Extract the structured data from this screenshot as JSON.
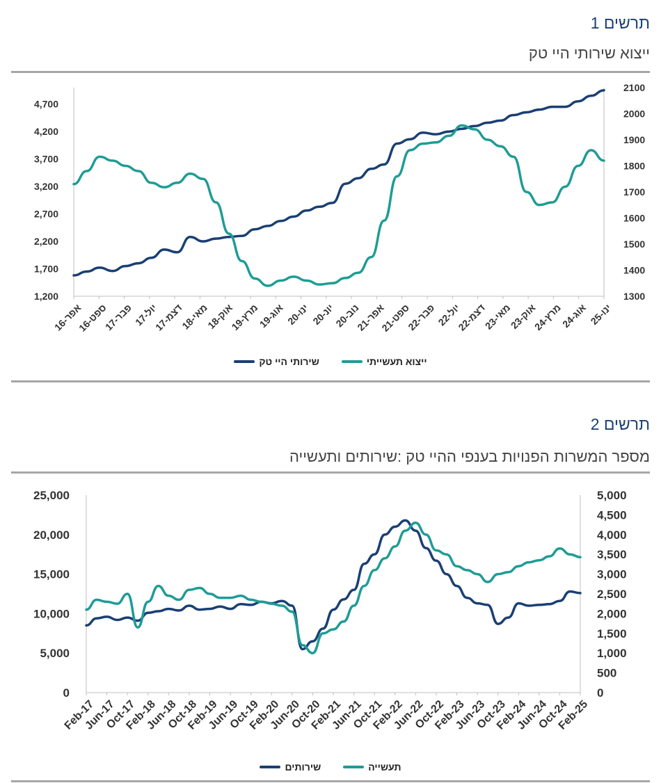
{
  "figure1": {
    "number": "תרשים 1",
    "title": "ייצוא שירותי היי טק",
    "legend": [
      "ייצוא תעשייתי",
      "שירותי היי טק"
    ],
    "colors": {
      "hitech_services": "#1a3f73",
      "industrial_exports": "#1e9c95"
    }
  },
  "figure2": {
    "number": "תרשים 2",
    "title": "מספר המשרות הפנויות בענפי ההיי טק :שירותים ותעשייה",
    "legend": [
      "תעשייה",
      "שירותים"
    ],
    "colors": {
      "services": "#1a3f73",
      "industry": "#1e9c95"
    }
  },
  "chart_data": [
    {
      "type": "line",
      "title": "ייצוא שירותי היי טק",
      "xlabel": "",
      "ylabel": "",
      "ylim": [
        1200,
        5000
      ],
      "y2lim": [
        1300,
        2100
      ],
      "y_ticks": [
        "4,700",
        "4,200",
        "3,700",
        "3,200",
        "2,700",
        "2,200",
        "1,700",
        "1,200"
      ],
      "y2_ticks": [
        "2100",
        "2000",
        "1900",
        "1800",
        "1700",
        "1600",
        "1500",
        "1400",
        "1300"
      ],
      "x_ticks": [
        "אפר-16",
        "ספט-16",
        "פבר-17",
        "יול-17",
        "דצמ-17",
        "מאי-18",
        "אוק-18",
        "מרץ-19",
        "אוג-19",
        "ינו-20",
        "יונ-20",
        "נוב-20",
        "אפר-21",
        "ספט-21",
        "פבר-22",
        "יול-22",
        "דצמ-22",
        "מאי-23",
        "אוק-23",
        "מרץ-24",
        "אוג-24",
        "ינו-25"
      ],
      "series": [
        {
          "name": "שירותי היי טק",
          "axis": "left",
          "values": [
            1580,
            1650,
            1720,
            1660,
            1750,
            1800,
            1900,
            2050,
            2000,
            2280,
            2200,
            2250,
            2280,
            2300,
            2420,
            2480,
            2570,
            2650,
            2760,
            2830,
            2900,
            3250,
            3350,
            3520,
            3600,
            3980,
            4060,
            4180,
            4150,
            4200,
            4250,
            4300,
            4360,
            4400,
            4500,
            4550,
            4600,
            4650,
            4650,
            4750,
            4850,
            4950
          ]
        },
        {
          "name": "ייצוא תעשייתי",
          "axis": "right",
          "values": [
            1730,
            1780,
            1835,
            1820,
            1800,
            1780,
            1735,
            1718,
            1735,
            1770,
            1750,
            1660,
            1540,
            1435,
            1368,
            1340,
            1360,
            1375,
            1360,
            1345,
            1350,
            1370,
            1390,
            1450,
            1590,
            1760,
            1860,
            1885,
            1890,
            1915,
            1955,
            1940,
            1900,
            1875,
            1835,
            1700,
            1650,
            1660,
            1720,
            1800,
            1860,
            1820
          ]
        }
      ]
    },
    {
      "type": "line",
      "title": "מספר המשרות הפנויות בענפי ההיי טק :שירותים ותעשייה",
      "xlabel": "",
      "ylabel": "",
      "ylim": [
        0,
        25000
      ],
      "y2lim": [
        0,
        5000
      ],
      "y_ticks": [
        "25,000",
        "20,000",
        "15,000",
        "10,000",
        "5,000",
        "0"
      ],
      "y2_ticks": [
        "5,000",
        "4,500",
        "4,000",
        "3,500",
        "3,000",
        "2,500",
        "2,000",
        "1,500",
        "1,000",
        "500",
        "0"
      ],
      "x_ticks": [
        "Feb-17",
        "Jun-17",
        "Oct-17",
        "Feb-18",
        "Jun-18",
        "Oct-18",
        "Feb-19",
        "Jun-19",
        "Oct-19",
        "Feb-20",
        "Jun-20",
        "Oct-20",
        "Feb-21",
        "Jun-21",
        "Oct-21",
        "Feb-22",
        "Jun-22",
        "Oct-22",
        "Feb-23",
        "Jun-23",
        "Oct-23",
        "Feb-24",
        "Jun-24",
        "Oct-24",
        "Feb-25"
      ],
      "series": [
        {
          "name": "שירותים",
          "axis": "left",
          "values": [
            8500,
            9400,
            9600,
            9200,
            9500,
            9100,
            10100,
            10300,
            10600,
            10400,
            11000,
            10500,
            10600,
            10900,
            10600,
            11200,
            11100,
            11500,
            11300,
            11600,
            11000,
            5500,
            6500,
            8100,
            10500,
            11800,
            13000,
            16300,
            17500,
            20000,
            21000,
            21800,
            20500,
            18300,
            16700,
            15000,
            13500,
            12000,
            11300,
            11100,
            8700,
            9500,
            11300,
            11000,
            11100,
            11200,
            11600,
            12800,
            12600
          ]
        },
        {
          "name": "תעשייה",
          "axis": "right",
          "values": [
            2100,
            2350,
            2300,
            2250,
            2500,
            1650,
            2300,
            2700,
            2450,
            2350,
            2600,
            2650,
            2500,
            2400,
            2400,
            2450,
            2350,
            2300,
            2250,
            2200,
            2050,
            1200,
            1000,
            1500,
            1600,
            1800,
            2200,
            2700,
            3100,
            3400,
            3700,
            4100,
            4300,
            4000,
            3600,
            3500,
            3200,
            3100,
            3000,
            2800,
            3000,
            3050,
            3200,
            3300,
            3350,
            3450,
            3650,
            3500,
            3430
          ]
        }
      ]
    }
  ]
}
